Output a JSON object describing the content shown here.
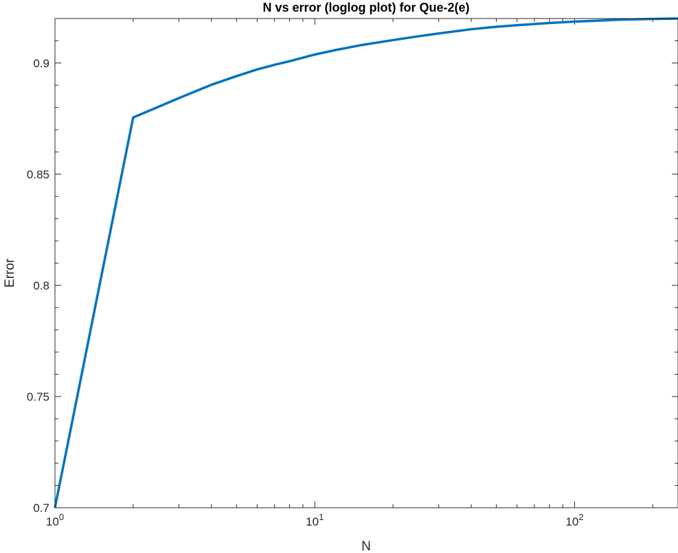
{
  "chart_data": {
    "type": "line",
    "title": "N vs error (loglog plot) for Que-2(e)",
    "xlabel": "N",
    "ylabel": "Error",
    "xscale": "log",
    "xlim": [
      1,
      250
    ],
    "ylim": [
      0.7,
      0.92
    ],
    "grid": false,
    "x_ticks": [
      {
        "value": 1,
        "base": "10",
        "exp": "0"
      },
      {
        "value": 10,
        "base": "10",
        "exp": "1"
      },
      {
        "value": 100,
        "base": "10",
        "exp": "2"
      }
    ],
    "y_ticks": [
      {
        "value": 0.7,
        "label": "0.7"
      },
      {
        "value": 0.75,
        "label": "0.75"
      },
      {
        "value": 0.8,
        "label": "0.8"
      },
      {
        "value": 0.85,
        "label": "0.85"
      },
      {
        "value": 0.9,
        "label": "0.9"
      }
    ],
    "series": [
      {
        "color": "#0072BD",
        "x": [
          1,
          2,
          3,
          4,
          5,
          6,
          7,
          8,
          10,
          12,
          15,
          20,
          25,
          30,
          40,
          50,
          60,
          80,
          100,
          120,
          150,
          200,
          250
        ],
        "y": [
          0.7,
          0.8755,
          0.8842,
          0.8902,
          0.8941,
          0.8971,
          0.8992,
          0.9008,
          0.9038,
          0.9058,
          0.908,
          0.9103,
          0.912,
          0.9133,
          0.9152,
          0.9163,
          0.917,
          0.918,
          0.9186,
          0.919,
          0.9195,
          0.9198,
          0.92
        ]
      }
    ]
  }
}
